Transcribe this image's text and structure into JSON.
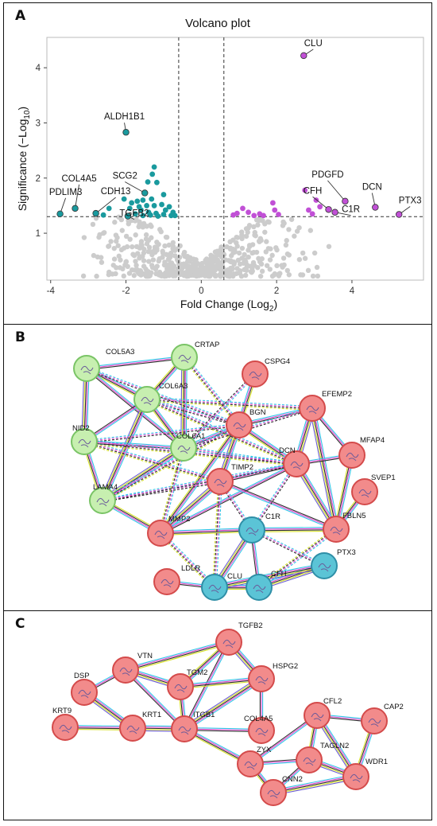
{
  "panels": {
    "a": {
      "label": "A"
    },
    "b": {
      "label": "B"
    },
    "c": {
      "label": "C"
    }
  },
  "chart_data": {
    "type": "scatter",
    "title": "Volcano plot",
    "xlabel": "Fold Change (Log",
    "xlabel_sub": "2",
    "xlabel_end": ")",
    "ylabel": "Significance (−Log",
    "ylabel_sub": "10",
    "ylabel_end": ")",
    "xlim": [
      -4.1,
      5.9
    ],
    "ylim": [
      0.15,
      4.55
    ],
    "xticks": [
      -4,
      -2,
      0,
      2,
      4
    ],
    "yticks": [
      1,
      2,
      3,
      4
    ],
    "grid": false,
    "thresholds": {
      "fc_neg": -0.6,
      "fc_pos": 0.6,
      "sig": 1.3
    },
    "colors": {
      "down": "#1a9a9e",
      "up": "#c150d6",
      "ns": "#cccccc"
    },
    "labeled_points": [
      {
        "gene": "CLU",
        "x": 2.72,
        "y": 4.22,
        "group": "up"
      },
      {
        "gene": "ALDH1B1",
        "x": -2.0,
        "y": 2.83,
        "group": "down"
      },
      {
        "gene": "SCG2",
        "x": -1.5,
        "y": 1.73,
        "group": "down"
      },
      {
        "gene": "COL4A5",
        "x": -3.35,
        "y": 1.45,
        "group": "down"
      },
      {
        "gene": "PDLIM3",
        "x": -3.75,
        "y": 1.35,
        "group": "down"
      },
      {
        "gene": "CDH13",
        "x": -2.8,
        "y": 1.36,
        "group": "down"
      },
      {
        "gene": "TGFB2",
        "x": -1.95,
        "y": 1.31,
        "group": "down"
      },
      {
        "gene": "PDGFD",
        "x": 3.82,
        "y": 1.58,
        "group": "up"
      },
      {
        "gene": "DCN",
        "x": 4.62,
        "y": 1.47,
        "group": "up"
      },
      {
        "gene": "CFH",
        "x": 3.38,
        "y": 1.43,
        "group": "up"
      },
      {
        "gene": "C1R",
        "x": 3.55,
        "y": 1.38,
        "group": "up"
      },
      {
        "gene": "PTX3",
        "x": 5.25,
        "y": 1.34,
        "group": "up"
      }
    ],
    "down_points": [
      [
        -1.25,
        2.2
      ],
      [
        -1.3,
        2.07
      ],
      [
        -1.18,
        1.92
      ],
      [
        -1.42,
        1.93
      ],
      [
        -1.0,
        1.7
      ],
      [
        -1.32,
        1.62
      ],
      [
        -1.55,
        1.6
      ],
      [
        -1.7,
        1.58
      ],
      [
        -1.85,
        1.55
      ],
      [
        -1.45,
        1.5
      ],
      [
        -1.25,
        1.5
      ],
      [
        -1.05,
        1.52
      ],
      [
        -0.85,
        1.48
      ],
      [
        -0.75,
        1.38
      ],
      [
        -1.6,
        1.42
      ],
      [
        -1.4,
        1.38
      ],
      [
        -1.2,
        1.36
      ],
      [
        -1.0,
        1.34
      ],
      [
        -0.8,
        1.32
      ],
      [
        -1.75,
        1.35
      ],
      [
        -1.55,
        1.32
      ],
      [
        -1.35,
        1.33
      ],
      [
        -1.15,
        1.31
      ],
      [
        -2.05,
        1.62
      ],
      [
        -2.45,
        1.45
      ],
      [
        -2.6,
        1.33
      ],
      [
        -1.9,
        1.45
      ],
      [
        -0.95,
        1.42
      ],
      [
        -1.65,
        1.48
      ],
      [
        -0.7,
        1.32
      ]
    ],
    "up_points": [
      [
        0.85,
        1.33
      ],
      [
        1.1,
        1.45
      ],
      [
        1.25,
        1.38
      ],
      [
        1.4,
        1.32
      ],
      [
        1.55,
        1.35
      ],
      [
        1.65,
        1.32
      ],
      [
        1.9,
        1.55
      ],
      [
        1.95,
        1.42
      ],
      [
        2.05,
        1.34
      ],
      [
        2.75,
        1.78
      ],
      [
        2.85,
        1.42
      ],
      [
        2.95,
        1.35
      ],
      [
        3.05,
        1.6
      ],
      [
        3.15,
        1.48
      ],
      [
        0.95,
        1.36
      ]
    ]
  },
  "network_b": {
    "nodes": [
      {
        "id": "COL5A3",
        "color": "green"
      },
      {
        "id": "CRTAP",
        "color": "green"
      },
      {
        "id": "COL6A3",
        "color": "green"
      },
      {
        "id": "NID2",
        "color": "green"
      },
      {
        "id": "COL6A1",
        "color": "green"
      },
      {
        "id": "LAMA4",
        "color": "green"
      },
      {
        "id": "CSPG4",
        "color": "red"
      },
      {
        "id": "BGN",
        "color": "red"
      },
      {
        "id": "EFEMP2",
        "color": "red"
      },
      {
        "id": "MFAP4",
        "color": "red"
      },
      {
        "id": "DCN",
        "color": "red"
      },
      {
        "id": "SVEP1",
        "color": "red"
      },
      {
        "id": "TIMP2",
        "color": "red"
      },
      {
        "id": "MMP2",
        "color": "red"
      },
      {
        "id": "FBLN5",
        "color": "red"
      },
      {
        "id": "LDLR",
        "color": "red"
      },
      {
        "id": "C1R",
        "color": "blue"
      },
      {
        "id": "CLU",
        "color": "blue"
      },
      {
        "id": "CFH",
        "color": "blue"
      },
      {
        "id": "PTX3",
        "color": "blue"
      }
    ]
  },
  "network_c": {
    "nodes": [
      {
        "id": "TGFB2"
      },
      {
        "id": "DSP"
      },
      {
        "id": "VTN"
      },
      {
        "id": "TGM2"
      },
      {
        "id": "HSPG2"
      },
      {
        "id": "KRT9"
      },
      {
        "id": "KRT1"
      },
      {
        "id": "ITGB1"
      },
      {
        "id": "COL4A5"
      },
      {
        "id": "CFL2"
      },
      {
        "id": "CAP2"
      },
      {
        "id": "TAGLN2"
      },
      {
        "id": "ZYX"
      },
      {
        "id": "WDR1"
      },
      {
        "id": "CNN2"
      }
    ]
  },
  "node_colors": {
    "green": "#c7efb0",
    "red": "#f28b8b",
    "blue": "#5bc4d6"
  }
}
